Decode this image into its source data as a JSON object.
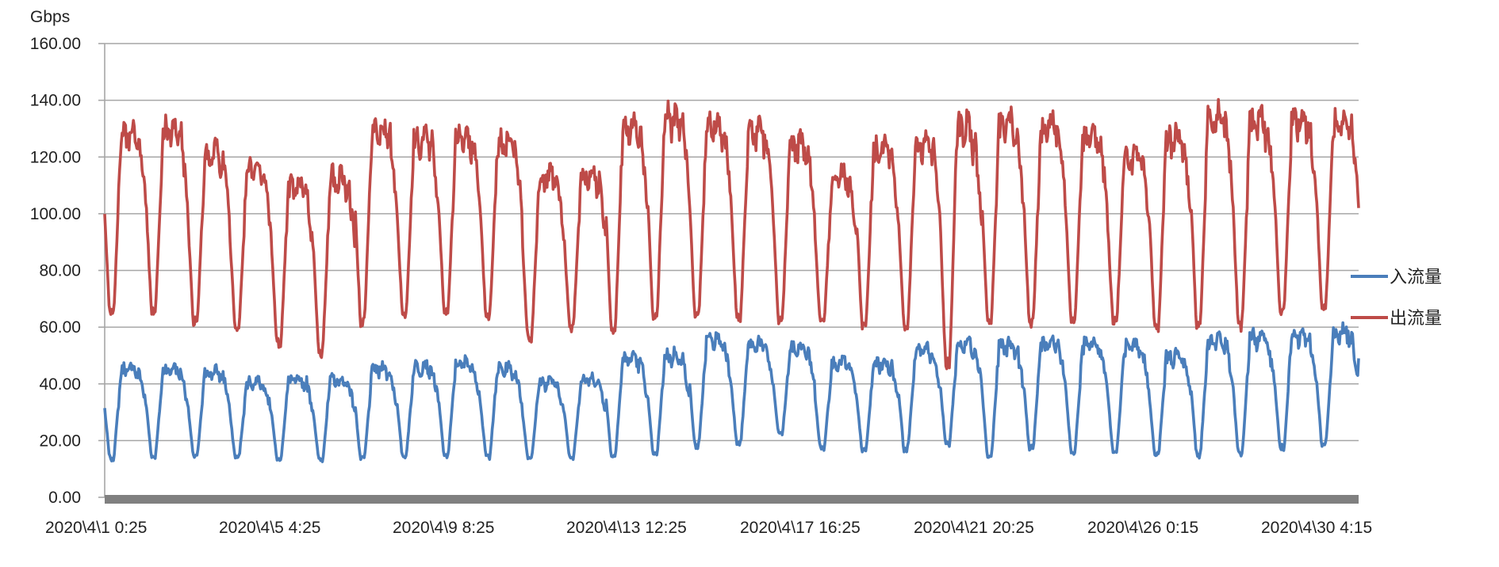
{
  "chart_data": {
    "type": "line",
    "ylabel": "Gbps",
    "ylim": [
      0,
      160
    ],
    "y_ticks": [
      "0.00",
      "20.00",
      "40.00",
      "60.00",
      "80.00",
      "100.00",
      "120.00",
      "140.00",
      "160.00"
    ],
    "x_ticks": [
      "2020\\4\\1 0:25",
      "2020\\4\\5 4:25",
      "2020\\4\\9 8:25",
      "2020\\4\\13 12:25",
      "2020\\4\\17 16:25",
      "2020\\4\\21 20:25",
      "2020\\4\\26 0:15",
      "2020\\4\\30 4:15"
    ],
    "x_range_days": [
      1,
      31
    ],
    "grid": true,
    "legend_position": "right",
    "series": [
      {
        "name": "入流量",
        "color": "#4a7ebb",
        "daily_min": [
          11,
          12,
          12,
          12,
          11,
          11,
          11,
          12,
          12,
          12,
          12,
          12,
          12,
          12,
          15,
          16,
          20,
          15,
          14,
          14,
          16,
          11,
          14,
          13,
          13,
          12,
          12,
          12,
          14,
          15
        ],
        "daily_max": [
          48,
          48,
          47,
          43,
          44,
          44,
          48,
          49,
          50,
          48,
          43,
          44,
          52,
          53,
          59,
          57,
          55,
          50,
          50,
          55,
          57,
          57,
          58,
          57,
          56,
          53,
          59,
          60,
          60,
          62
        ],
        "end_value": 49
      },
      {
        "name": "出流量",
        "color": "#be4b48",
        "daily_min": [
          60,
          60,
          57,
          55,
          50,
          46,
          57,
          60,
          61,
          59,
          51,
          56,
          54,
          58,
          59,
          58,
          58,
          57,
          56,
          55,
          40,
          56,
          56,
          58,
          58,
          55,
          55,
          55,
          60,
          62
        ],
        "daily_max": [
          134,
          135,
          127,
          120,
          115,
          118,
          135,
          132,
          132,
          130,
          118,
          118,
          136,
          140,
          137,
          135,
          130,
          118,
          128,
          130,
          137,
          138,
          137,
          133,
          125,
          132,
          141,
          139,
          139,
          138
        ],
        "end_value": 102
      }
    ]
  }
}
